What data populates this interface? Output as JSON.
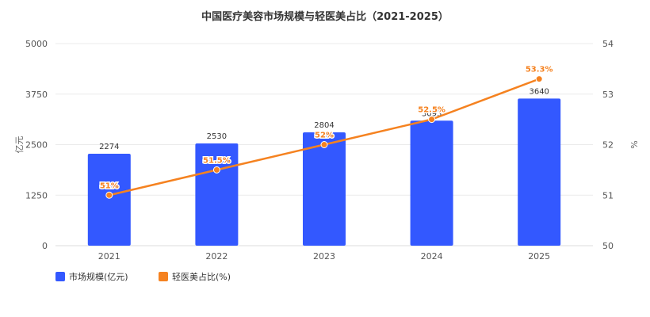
{
  "chart_data": {
    "type": "bar",
    "title": "中国医疗美容市场规模与轻医美占比（2021-2025）",
    "categories": [
      "2021",
      "2022",
      "2023",
      "2024",
      "2025"
    ],
    "series": [
      {
        "name": "市场规模(亿元)",
        "type": "bar",
        "axis": "left",
        "values": [
          2274,
          2530,
          2804,
          3093,
          3640
        ],
        "labels": [
          "2274",
          "2530",
          "2804",
          "3093",
          "3640"
        ]
      },
      {
        "name": "轻医美占比(%)",
        "type": "line",
        "axis": "right",
        "values": [
          51,
          51.5,
          52,
          52.5,
          53.3
        ],
        "labels": [
          "51%",
          "51.5%",
          "52%",
          "52.5%",
          "53.3%"
        ]
      }
    ],
    "y_left": {
      "label": "亿元",
      "range": [
        0,
        5000
      ],
      "ticks": [
        "0",
        "1250",
        "2500",
        "3750",
        "5000"
      ]
    },
    "y_right": {
      "label": "%",
      "range": [
        50,
        54
      ],
      "ticks": [
        "50",
        "51",
        "52",
        "53",
        "54"
      ]
    },
    "grid": true,
    "legend_position": "bottom-left",
    "colors": {
      "bar": "#3358FF",
      "line": "#F58220",
      "axis_text": "#555555",
      "grid": "#EBEBEB"
    }
  }
}
